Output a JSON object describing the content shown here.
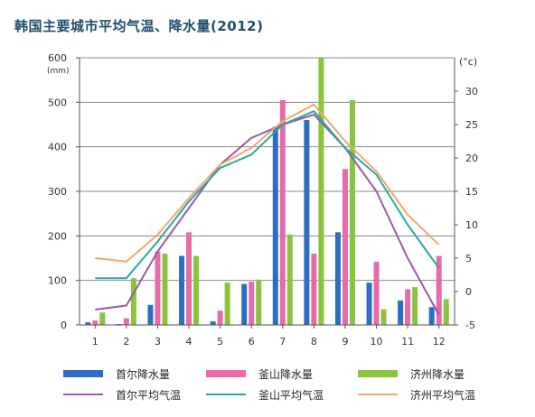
{
  "title": "韩国主要城市平均气温、降水量(2012)",
  "chart_data": {
    "type": "bar+line",
    "categories": [
      "1",
      "2",
      "3",
      "4",
      "5",
      "6",
      "7",
      "8",
      "9",
      "10",
      "11",
      "12"
    ],
    "y_left": {
      "unit": "(mm)",
      "min": 0,
      "max": 600,
      "ticks": [
        0,
        100,
        200,
        300,
        400,
        500,
        600
      ]
    },
    "y_right": {
      "unit": "(°c)",
      "min": -5,
      "max": 35,
      "ticks": [
        -5,
        0,
        5,
        10,
        15,
        20,
        25,
        30
      ]
    },
    "bar_series": [
      {
        "name": "首尔降水量",
        "color": "#2b6ec2",
        "values": [
          6,
          2,
          45,
          155,
          8,
          92,
          445,
          460,
          208,
          95,
          55,
          40
        ]
      },
      {
        "name": "釜山降水量",
        "color": "#e86aa8",
        "values": [
          10,
          15,
          165,
          208,
          32,
          97,
          505,
          160,
          350,
          142,
          80,
          155
        ]
      },
      {
        "name": "济州降水量",
        "color": "#8ac43f",
        "values": [
          28,
          105,
          160,
          155,
          95,
          102,
          203,
          600,
          505,
          35,
          85,
          58
        ]
      }
    ],
    "line_series": [
      {
        "name": "首尔平均气温",
        "color": "#9a5aa8",
        "values": [
          -2.7,
          -2.1,
          6.0,
          12.5,
          19.0,
          23.0,
          25.0,
          26.5,
          21.5,
          15.0,
          5.0,
          -3.5
        ]
      },
      {
        "name": "釜山平均气温",
        "color": "#2aa6a6",
        "values": [
          2.0,
          2.0,
          7.5,
          13.5,
          18.5,
          20.5,
          25.0,
          27.0,
          21.5,
          17.5,
          10.0,
          3.5
        ]
      },
      {
        "name": "济州平均气温",
        "color": "#f0a868",
        "values": [
          5.0,
          4.5,
          8.5,
          14.0,
          19.0,
          21.5,
          25.5,
          28.0,
          22.5,
          18.0,
          11.5,
          7.0
        ]
      }
    ],
    "grid": true,
    "legend_position": "bottom"
  }
}
